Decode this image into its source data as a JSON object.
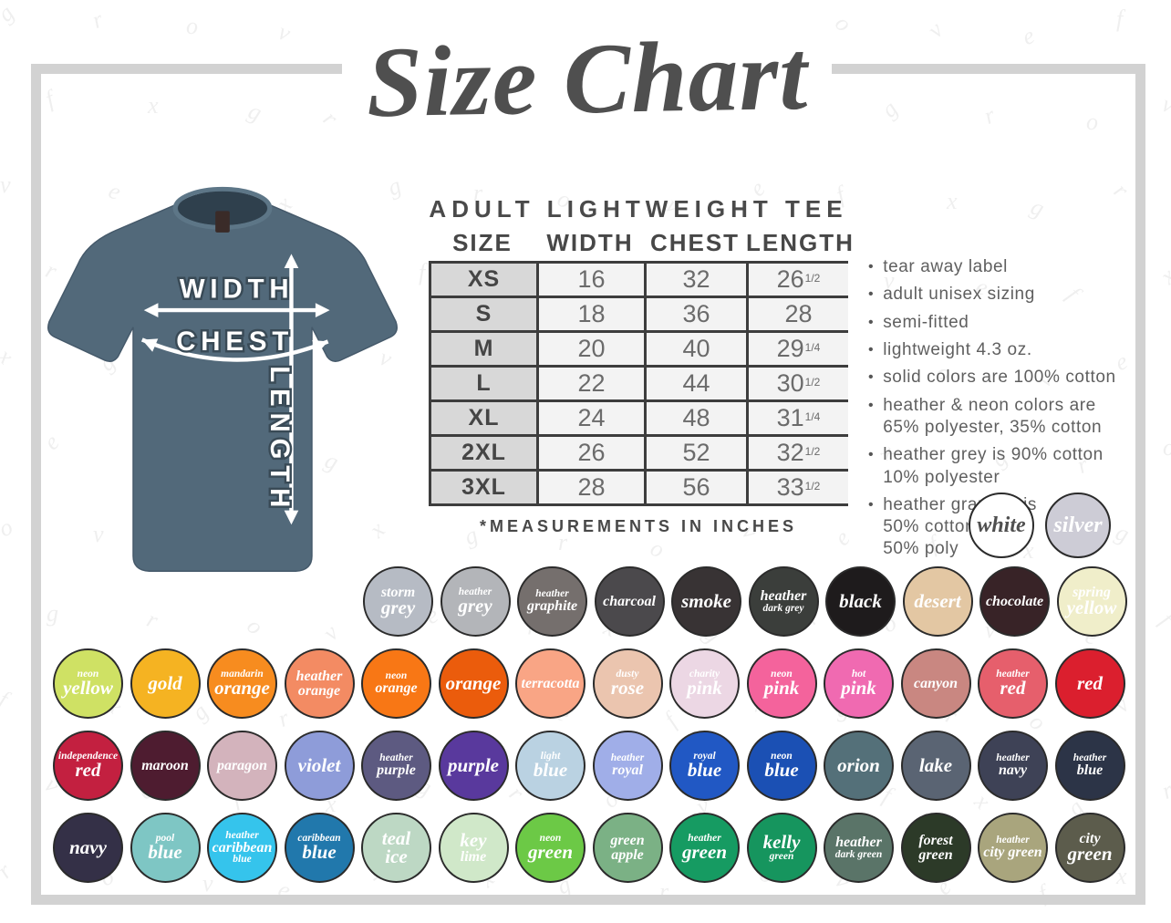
{
  "title": "Size Chart",
  "watermark_letters": [
    "g",
    "r",
    "o",
    "v",
    "e",
    "f",
    "x"
  ],
  "colors": {
    "frame": "#d2d2d2",
    "title_text": "#4f4f4f",
    "shirt": "#52697a"
  },
  "shirt": {
    "width_label": "WIDTH",
    "chest_label": "CHEST",
    "length_label": "LENGTH"
  },
  "table": {
    "heading": "ADULT LIGHTWEIGHT TEE",
    "columns": [
      "SIZE",
      "WIDTH",
      "CHEST",
      "LENGTH"
    ],
    "rows": [
      {
        "size": "XS",
        "width": "16",
        "chest": "32",
        "length": {
          "base": "26",
          "frac": "1/2"
        }
      },
      {
        "size": "S",
        "width": "18",
        "chest": "36",
        "length": {
          "base": "28",
          "frac": ""
        }
      },
      {
        "size": "M",
        "width": "20",
        "chest": "40",
        "length": {
          "base": "29",
          "frac": "1/4"
        }
      },
      {
        "size": "L",
        "width": "22",
        "chest": "44",
        "length": {
          "base": "30",
          "frac": "1/2"
        }
      },
      {
        "size": "XL",
        "width": "24",
        "chest": "48",
        "length": {
          "base": "31",
          "frac": "1/4"
        }
      },
      {
        "size": "2XL",
        "width": "26",
        "chest": "52",
        "length": {
          "base": "32",
          "frac": "1/2"
        }
      },
      {
        "size": "3XL",
        "width": "28",
        "chest": "56",
        "length": {
          "base": "33",
          "frac": "1/2"
        }
      }
    ],
    "footnote": "*MEASUREMENTS IN INCHES"
  },
  "bullets": [
    "tear away label",
    "adult unisex sizing",
    "semi-fitted",
    "lightweight 4.3 oz.",
    "solid colors are 100% cotton",
    "heather & neon colors are\n65% polyester, 35% cotton",
    "heather grey is 90% cotton\n10% polyester",
    "heather graphite is\n50% cotton\n50% poly"
  ],
  "featured_swatches": [
    {
      "name": "white",
      "color": "#ffffff",
      "text": "#4f4f4f",
      "lines": [
        [
          "white",
          "lg"
        ]
      ]
    },
    {
      "name": "silver",
      "color": "#cdccd6",
      "text": "#ffffff",
      "lines": [
        [
          "silver",
          "lg"
        ]
      ]
    }
  ],
  "palette": {
    "rows": [
      [
        {
          "name": "storm-grey",
          "color": "#b6bbc4",
          "lines": [
            [
              "storm",
              "md"
            ],
            [
              "grey",
              "lg"
            ]
          ]
        },
        {
          "name": "heather-grey",
          "color": "#b3b5b9",
          "lines": [
            [
              "heather",
              "sm"
            ],
            [
              "grey",
              "lg"
            ]
          ]
        },
        {
          "name": "heather-graphite",
          "color": "#756f6d",
          "lines": [
            [
              "heather",
              "sm"
            ],
            [
              "graphite",
              "md"
            ]
          ]
        },
        {
          "name": "charcoal",
          "color": "#4b494c",
          "lines": [
            [
              "charcoal",
              "md"
            ]
          ]
        },
        {
          "name": "smoke",
          "color": "#383334",
          "lines": [
            [
              "smoke",
              "lg"
            ]
          ]
        },
        {
          "name": "heather-dark-grey",
          "color": "#3b3e3b",
          "lines": [
            [
              "heather",
              "md"
            ],
            [
              "dark grey",
              "sm"
            ]
          ]
        },
        {
          "name": "black",
          "color": "#1e1b1c",
          "lines": [
            [
              "black",
              "lg"
            ]
          ]
        },
        {
          "name": "desert",
          "color": "#e3c7a3",
          "lines": [
            [
              "desert",
              "lg"
            ]
          ]
        },
        {
          "name": "chocolate",
          "color": "#382327",
          "lines": [
            [
              "chocolate",
              "md"
            ]
          ]
        },
        {
          "name": "spring-yellow",
          "color": "#f0eeca",
          "lines": [
            [
              "spring",
              "md"
            ],
            [
              "yellow",
              "lg"
            ]
          ]
        }
      ],
      [
        {
          "name": "neon-yellow",
          "color": "#cfe164",
          "lines": [
            [
              "neon",
              "sm"
            ],
            [
              "yellow",
              "lg"
            ]
          ]
        },
        {
          "name": "gold",
          "color": "#f5b322",
          "lines": [
            [
              "gold",
              "lg"
            ]
          ]
        },
        {
          "name": "mandarin-orange",
          "color": "#f78c1f",
          "lines": [
            [
              "mandarin",
              "sm"
            ],
            [
              "orange",
              "lg"
            ]
          ]
        },
        {
          "name": "heather-orange",
          "color": "#f38b63",
          "lines": [
            [
              "heather",
              "md"
            ],
            [
              "orange",
              "md"
            ]
          ]
        },
        {
          "name": "neon-orange",
          "color": "#f87715",
          "lines": [
            [
              "neon",
              "sm"
            ],
            [
              "orange",
              "md"
            ]
          ]
        },
        {
          "name": "orange",
          "color": "#eb5c0c",
          "lines": [
            [
              "orange",
              "lg"
            ]
          ]
        },
        {
          "name": "terracotta",
          "color": "#f9a585",
          "lines": [
            [
              "terracotta",
              "md"
            ]
          ]
        },
        {
          "name": "dusty-rose",
          "color": "#ebc5af",
          "lines": [
            [
              "dusty",
              "sm"
            ],
            [
              "rose",
              "lg"
            ]
          ]
        },
        {
          "name": "charity-pink",
          "color": "#ecd7e4",
          "lines": [
            [
              "charity",
              "sm"
            ],
            [
              "pink",
              "lg"
            ]
          ]
        },
        {
          "name": "neon-pink",
          "color": "#f4639c",
          "lines": [
            [
              "neon",
              "sm"
            ],
            [
              "pink",
              "lg"
            ]
          ]
        },
        {
          "name": "hot-pink",
          "color": "#f06ab1",
          "lines": [
            [
              "hot",
              "sm"
            ],
            [
              "pink",
              "lg"
            ]
          ]
        },
        {
          "name": "canyon",
          "color": "#c98781",
          "lines": [
            [
              "canyon",
              "md"
            ]
          ]
        },
        {
          "name": "heather-red",
          "color": "#e65f6c",
          "lines": [
            [
              "heather",
              "sm"
            ],
            [
              "red",
              "lg"
            ]
          ]
        },
        {
          "name": "red",
          "color": "#db1f2e",
          "lines": [
            [
              "red",
              "lg"
            ]
          ]
        }
      ],
      [
        {
          "name": "independence-red",
          "color": "#c32040",
          "lines": [
            [
              "independence",
              "sm"
            ],
            [
              "red",
              "lg"
            ]
          ]
        },
        {
          "name": "maroon",
          "color": "#4e1c30",
          "lines": [
            [
              "maroon",
              "md"
            ]
          ]
        },
        {
          "name": "paragon",
          "color": "#d3b3bc",
          "lines": [
            [
              "paragon",
              "md"
            ]
          ]
        },
        {
          "name": "violet",
          "color": "#8e9cd9",
          "lines": [
            [
              "violet",
              "lg"
            ]
          ]
        },
        {
          "name": "heather-purple",
          "color": "#5d5a81",
          "lines": [
            [
              "heather",
              "sm"
            ],
            [
              "purple",
              "md"
            ]
          ]
        },
        {
          "name": "purple",
          "color": "#59399d",
          "lines": [
            [
              "purple",
              "lg"
            ]
          ]
        },
        {
          "name": "light-blue",
          "color": "#bad2e2",
          "lines": [
            [
              "light",
              "sm"
            ],
            [
              "blue",
              "lg"
            ]
          ]
        },
        {
          "name": "heather-royal",
          "color": "#a0aee8",
          "lines": [
            [
              "heather",
              "sm"
            ],
            [
              "royal",
              "md"
            ]
          ]
        },
        {
          "name": "royal-blue",
          "color": "#2158c4",
          "lines": [
            [
              "royal",
              "sm"
            ],
            [
              "blue",
              "lg"
            ]
          ]
        },
        {
          "name": "neon-blue",
          "color": "#1b50b4",
          "lines": [
            [
              "neon",
              "sm"
            ],
            [
              "blue",
              "lg"
            ]
          ]
        },
        {
          "name": "orion",
          "color": "#547079",
          "lines": [
            [
              "orion",
              "lg"
            ]
          ]
        },
        {
          "name": "lake",
          "color": "#5a6473",
          "lines": [
            [
              "lake",
              "lg"
            ]
          ]
        },
        {
          "name": "heather-navy",
          "color": "#3e4256",
          "lines": [
            [
              "heather",
              "sm"
            ],
            [
              "navy",
              "md"
            ]
          ]
        },
        {
          "name": "heather-blue",
          "color": "#2c3447",
          "lines": [
            [
              "heather",
              "sm"
            ],
            [
              "blue",
              "md"
            ]
          ]
        }
      ],
      [
        {
          "name": "navy",
          "color": "#343047",
          "lines": [
            [
              "navy",
              "lg"
            ]
          ]
        },
        {
          "name": "pool-blue",
          "color": "#7ec6c4",
          "lines": [
            [
              "pool",
              "sm"
            ],
            [
              "blue",
              "lg"
            ]
          ]
        },
        {
          "name": "heather-caribbean-blue",
          "color": "#35c4ec",
          "lines": [
            [
              "heather",
              "sm"
            ],
            [
              "caribbean",
              "md"
            ],
            [
              "blue",
              "sm"
            ]
          ]
        },
        {
          "name": "caribbean-blue",
          "color": "#2178ac",
          "lines": [
            [
              "caribbean",
              "sm"
            ],
            [
              "blue",
              "lg"
            ]
          ]
        },
        {
          "name": "teal-ice",
          "color": "#bdd8c4",
          "lines": [
            [
              "teal",
              "lg"
            ],
            [
              "ice",
              "lg"
            ]
          ]
        },
        {
          "name": "key-lime",
          "color": "#d0e8c9",
          "lines": [
            [
              "key",
              "lg"
            ],
            [
              "lime",
              "md"
            ]
          ]
        },
        {
          "name": "neon-green",
          "color": "#6cc946",
          "lines": [
            [
              "neon",
              "sm"
            ],
            [
              "green",
              "lg"
            ]
          ]
        },
        {
          "name": "green-apple",
          "color": "#7bb185",
          "lines": [
            [
              "green",
              "md"
            ],
            [
              "apple",
              "md"
            ]
          ]
        },
        {
          "name": "heather-green",
          "color": "#169b62",
          "lines": [
            [
              "heather",
              "sm"
            ],
            [
              "green",
              "lg"
            ]
          ]
        },
        {
          "name": "kelly-green",
          "color": "#16955e",
          "lines": [
            [
              "kelly",
              "lg"
            ],
            [
              "green",
              "sm"
            ]
          ]
        },
        {
          "name": "heather-dark-green",
          "color": "#5a7468",
          "lines": [
            [
              "heather",
              "md"
            ],
            [
              "dark green",
              "sm"
            ]
          ]
        },
        {
          "name": "forest-green",
          "color": "#2c3a28",
          "lines": [
            [
              "forest",
              "md"
            ],
            [
              "green",
              "md"
            ]
          ]
        },
        {
          "name": "heather-city-green",
          "color": "#a9a57d",
          "lines": [
            [
              "heather",
              "sm"
            ],
            [
              "city green",
              "md"
            ]
          ]
        },
        {
          "name": "city-green",
          "color": "#5c5c4c",
          "lines": [
            [
              "city",
              "md"
            ],
            [
              "green",
              "lg"
            ]
          ]
        }
      ]
    ]
  }
}
